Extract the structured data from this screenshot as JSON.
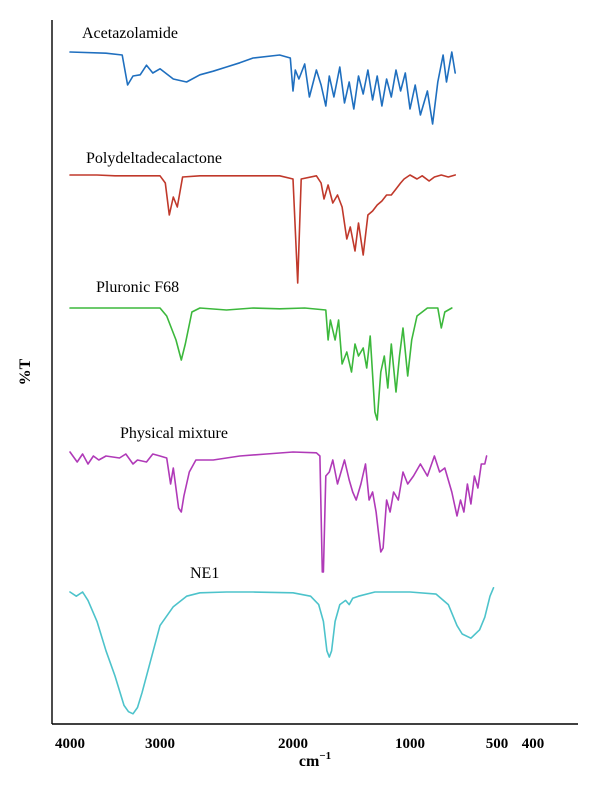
{
  "chart_data": {
    "type": "line",
    "xlabel": "cm",
    "xlabel_sup": "−1",
    "ylabel": "%T",
    "x_ticks": [
      "4000",
      "3000",
      "2000",
      "1000",
      "500",
      "400"
    ],
    "x_tick_values": [
      4000,
      3000,
      2000,
      1000,
      500,
      400
    ],
    "xlim": [
      4100,
      280
    ],
    "x_reversed": true,
    "grid": false,
    "series": [
      {
        "name": "Acetazolamide",
        "color": "#1f6fbf",
        "points": [
          [
            4000,
            0.0
          ],
          [
            3600,
            0.02
          ],
          [
            3420,
            0.05
          ],
          [
            3360,
            0.55
          ],
          [
            3300,
            0.4
          ],
          [
            3220,
            0.38
          ],
          [
            3150,
            0.22
          ],
          [
            3080,
            0.35
          ],
          [
            3000,
            0.28
          ],
          [
            2900,
            0.45
          ],
          [
            2800,
            0.5
          ],
          [
            2700,
            0.38
          ],
          [
            2600,
            0.32
          ],
          [
            2500,
            0.25
          ],
          [
            2400,
            0.18
          ],
          [
            2300,
            0.1
          ],
          [
            2100,
            0.05
          ],
          [
            2020,
            0.1
          ],
          [
            2000,
            0.65
          ],
          [
            1980,
            0.3
          ],
          [
            1950,
            0.45
          ],
          [
            1900,
            0.2
          ],
          [
            1860,
            0.75
          ],
          [
            1800,
            0.3
          ],
          [
            1760,
            0.55
          ],
          [
            1720,
            0.9
          ],
          [
            1690,
            0.4
          ],
          [
            1650,
            0.75
          ],
          [
            1600,
            0.25
          ],
          [
            1560,
            0.85
          ],
          [
            1520,
            0.5
          ],
          [
            1480,
            0.95
          ],
          [
            1440,
            0.4
          ],
          [
            1400,
            0.7
          ],
          [
            1360,
            0.3
          ],
          [
            1320,
            0.8
          ],
          [
            1280,
            0.4
          ],
          [
            1240,
            0.9
          ],
          [
            1200,
            0.45
          ],
          [
            1160,
            0.75
          ],
          [
            1120,
            0.3
          ],
          [
            1080,
            0.65
          ],
          [
            1040,
            0.35
          ],
          [
            1000,
            0.95
          ],
          [
            970,
            0.55
          ],
          [
            940,
            1.05
          ],
          [
            900,
            0.65
          ],
          [
            870,
            1.2
          ],
          [
            840,
            0.5
          ],
          [
            810,
            0.05
          ],
          [
            790,
            0.5
          ],
          [
            760,
            0.0
          ],
          [
            740,
            0.35
          ]
        ]
      },
      {
        "name": "Polydeltadecalactone",
        "color": "#c0392b",
        "points": [
          [
            4000,
            0.0
          ],
          [
            3700,
            0.0
          ],
          [
            3500,
            0.02
          ],
          [
            3000,
            0.02
          ],
          [
            2960,
            0.2
          ],
          [
            2930,
            1.0
          ],
          [
            2900,
            0.55
          ],
          [
            2870,
            0.8
          ],
          [
            2830,
            0.05
          ],
          [
            2700,
            0.02
          ],
          [
            2100,
            0.02
          ],
          [
            2000,
            0.1
          ],
          [
            1960,
            2.7
          ],
          [
            1930,
            0.1
          ],
          [
            1800,
            0.02
          ],
          [
            1760,
            0.2
          ],
          [
            1735,
            0.6
          ],
          [
            1700,
            0.25
          ],
          [
            1660,
            0.7
          ],
          [
            1620,
            0.5
          ],
          [
            1580,
            0.8
          ],
          [
            1540,
            1.6
          ],
          [
            1510,
            1.3
          ],
          [
            1470,
            1.9
          ],
          [
            1440,
            1.2
          ],
          [
            1400,
            2.0
          ],
          [
            1360,
            1.0
          ],
          [
            1320,
            0.9
          ],
          [
            1280,
            0.75
          ],
          [
            1240,
            0.65
          ],
          [
            1200,
            0.5
          ],
          [
            1160,
            0.5
          ],
          [
            1120,
            0.35
          ],
          [
            1080,
            0.2
          ],
          [
            1050,
            0.1
          ],
          [
            1000,
            0.0
          ],
          [
            960,
            0.1
          ],
          [
            930,
            0.02
          ],
          [
            890,
            0.15
          ],
          [
            860,
            0.05
          ],
          [
            820,
            0.0
          ],
          [
            780,
            0.05
          ],
          [
            740,
            0.0
          ]
        ]
      },
      {
        "name": "Pluronic F68",
        "color": "#3cb83c",
        "points": [
          [
            4000,
            0.0
          ],
          [
            3700,
            0.0
          ],
          [
            3000,
            0.0
          ],
          [
            2950,
            0.2
          ],
          [
            2880,
            0.8
          ],
          [
            2840,
            1.3
          ],
          [
            2810,
            0.9
          ],
          [
            2760,
            0.1
          ],
          [
            2700,
            0.0
          ],
          [
            2500,
            0.05
          ],
          [
            2300,
            0.0
          ],
          [
            2100,
            0.02
          ],
          [
            1900,
            0.0
          ],
          [
            1720,
            0.05
          ],
          [
            1700,
            0.8
          ],
          [
            1680,
            0.3
          ],
          [
            1640,
            0.8
          ],
          [
            1610,
            0.3
          ],
          [
            1580,
            1.4
          ],
          [
            1540,
            1.1
          ],
          [
            1500,
            1.6
          ],
          [
            1470,
            0.9
          ],
          [
            1440,
            1.2
          ],
          [
            1400,
            1.0
          ],
          [
            1370,
            1.5
          ],
          [
            1340,
            0.7
          ],
          [
            1300,
            2.6
          ],
          [
            1280,
            2.8
          ],
          [
            1250,
            1.6
          ],
          [
            1220,
            1.2
          ],
          [
            1190,
            2.0
          ],
          [
            1160,
            0.9
          ],
          [
            1120,
            2.1
          ],
          [
            1090,
            1.2
          ],
          [
            1060,
            0.5
          ],
          [
            1020,
            1.7
          ],
          [
            990,
            0.8
          ],
          [
            960,
            0.2
          ],
          [
            900,
            0.0
          ],
          [
            840,
            0.0
          ],
          [
            820,
            0.5
          ],
          [
            800,
            0.1
          ],
          [
            760,
            0.0
          ]
        ]
      },
      {
        "name": "Physical mixture",
        "color": "#b03ab8",
        "points": [
          [
            4000,
            0.0
          ],
          [
            3920,
            0.25
          ],
          [
            3860,
            0.05
          ],
          [
            3800,
            0.3
          ],
          [
            3740,
            0.1
          ],
          [
            3680,
            0.2
          ],
          [
            3600,
            0.1
          ],
          [
            3450,
            0.15
          ],
          [
            3380,
            0.05
          ],
          [
            3300,
            0.3
          ],
          [
            3250,
            0.2
          ],
          [
            3150,
            0.25
          ],
          [
            3080,
            0.05
          ],
          [
            3000,
            0.1
          ],
          [
            2950,
            0.15
          ],
          [
            2920,
            0.8
          ],
          [
            2900,
            0.4
          ],
          [
            2860,
            1.4
          ],
          [
            2840,
            1.5
          ],
          [
            2820,
            1.1
          ],
          [
            2780,
            0.5
          ],
          [
            2730,
            0.2
          ],
          [
            2600,
            0.2
          ],
          [
            2400,
            0.1
          ],
          [
            2200,
            0.05
          ],
          [
            2000,
            0.0
          ],
          [
            1800,
            0.02
          ],
          [
            1770,
            0.1
          ],
          [
            1750,
            3.0
          ],
          [
            1740,
            3.0
          ],
          [
            1720,
            0.6
          ],
          [
            1690,
            0.5
          ],
          [
            1660,
            0.2
          ],
          [
            1620,
            0.8
          ],
          [
            1590,
            0.5
          ],
          [
            1560,
            0.2
          ],
          [
            1520,
            0.7
          ],
          [
            1490,
            1.0
          ],
          [
            1460,
            1.2
          ],
          [
            1420,
            0.8
          ],
          [
            1380,
            0.3
          ],
          [
            1350,
            1.2
          ],
          [
            1320,
            1.0
          ],
          [
            1290,
            1.5
          ],
          [
            1270,
            2.0
          ],
          [
            1250,
            2.5
          ],
          [
            1230,
            2.4
          ],
          [
            1200,
            1.2
          ],
          [
            1170,
            1.5
          ],
          [
            1140,
            1.0
          ],
          [
            1100,
            1.2
          ],
          [
            1060,
            0.5
          ],
          [
            1020,
            0.8
          ],
          [
            980,
            0.6
          ],
          [
            940,
            0.3
          ],
          [
            900,
            0.6
          ],
          [
            860,
            0.1
          ],
          [
            830,
            0.5
          ],
          [
            800,
            0.4
          ],
          [
            760,
            1.0
          ],
          [
            730,
            1.6
          ],
          [
            710,
            1.2
          ],
          [
            690,
            1.5
          ],
          [
            670,
            0.8
          ],
          [
            650,
            1.3
          ],
          [
            630,
            0.6
          ],
          [
            610,
            0.9
          ],
          [
            590,
            0.3
          ],
          [
            570,
            0.3
          ],
          [
            560,
            0.1
          ]
        ]
      },
      {
        "name": "NE1",
        "color": "#4dc3cb",
        "points": [
          [
            4000,
            0.0
          ],
          [
            3930,
            0.1
          ],
          [
            3860,
            0.0
          ],
          [
            3800,
            0.2
          ],
          [
            3700,
            0.7
          ],
          [
            3600,
            1.4
          ],
          [
            3500,
            2.0
          ],
          [
            3400,
            2.7
          ],
          [
            3350,
            2.85
          ],
          [
            3300,
            2.9
          ],
          [
            3250,
            2.75
          ],
          [
            3200,
            2.4
          ],
          [
            3100,
            1.6
          ],
          [
            3000,
            0.8
          ],
          [
            2900,
            0.35
          ],
          [
            2800,
            0.1
          ],
          [
            2700,
            0.02
          ],
          [
            2500,
            0.0
          ],
          [
            2300,
            0.0
          ],
          [
            2000,
            0.02
          ],
          [
            1850,
            0.1
          ],
          [
            1780,
            0.3
          ],
          [
            1740,
            0.7
          ],
          [
            1710,
            1.4
          ],
          [
            1690,
            1.55
          ],
          [
            1670,
            1.4
          ],
          [
            1640,
            0.7
          ],
          [
            1600,
            0.3
          ],
          [
            1550,
            0.2
          ],
          [
            1520,
            0.3
          ],
          [
            1490,
            0.15
          ],
          [
            1440,
            0.1
          ],
          [
            1300,
            0.0
          ],
          [
            1000,
            0.0
          ],
          [
            850,
            0.05
          ],
          [
            780,
            0.3
          ],
          [
            730,
            0.8
          ],
          [
            700,
            1.0
          ],
          [
            650,
            1.1
          ],
          [
            600,
            0.9
          ],
          [
            570,
            0.6
          ],
          [
            540,
            0.1
          ],
          [
            520,
            -0.1
          ]
        ]
      }
    ]
  }
}
